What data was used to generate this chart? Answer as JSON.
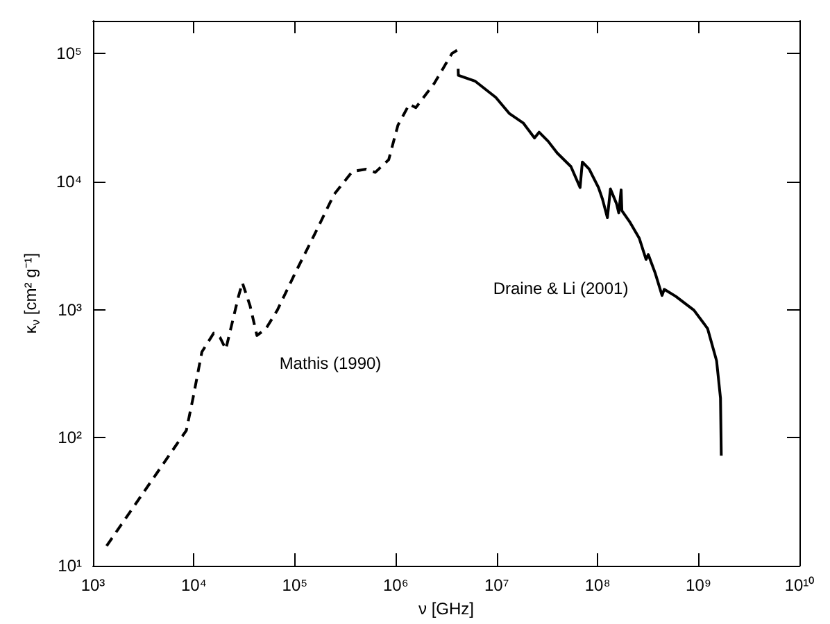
{
  "chart_data": {
    "type": "line",
    "xlabel": "ν [GHz]",
    "ylabel": "κ$_{ν}$ [cm² g⁻¹]",
    "log": "xy",
    "grid": false,
    "marker": "none",
    "xlim": [
      1000,
      10000000000
    ],
    "ylim": [
      10,
      180000
    ],
    "xticks": [
      {
        "value": 1000,
        "label": "10³"
      },
      {
        "value": 10000,
        "label": "10⁴"
      },
      {
        "value": 100000,
        "label": "10⁵"
      },
      {
        "value": 1000000,
        "label": "10⁶"
      },
      {
        "value": 10000000,
        "label": "10⁷"
      },
      {
        "value": 100000000,
        "label": "10⁸"
      },
      {
        "value": 1000000000,
        "label": "10⁹"
      },
      {
        "value": 10000000000,
        "label": "10¹⁰"
      }
    ],
    "yticks": [
      {
        "value": 10,
        "label": "10¹"
      },
      {
        "value": 100,
        "label": "10²"
      },
      {
        "value": 1000,
        "label": "10³"
      },
      {
        "value": 10000,
        "label": "10⁴"
      },
      {
        "value": 100000,
        "label": "10⁵"
      }
    ],
    "series": [
      {
        "color": "#000000",
        "line_style": "dashed",
        "x": [
          1365,
          8410,
          9800,
          12000,
          15700,
          18200,
          20700,
          27700,
          30200,
          36000,
          42100,
          51800,
          67100,
          100700,
          162000,
          245000,
          372000,
          508000,
          626000,
          851000,
          1050000,
          1360000,
          1580000,
          2400000,
          3600000,
          4050000
        ],
        "values": [
          14.3,
          114,
          204,
          468,
          655,
          603,
          490,
          1274,
          1622,
          1072,
          628,
          711,
          991,
          1928,
          4074,
          7943,
          12000,
          12500,
          11800,
          14800,
          27500,
          40100,
          37800,
          58200,
          100000,
          106000
        ]
      },
      {
        "color": "#000000",
        "line_style": "solid",
        "x": [
          4150000,
          4170000,
          6140000,
          9800000,
          13400000,
          18300000,
          23700000,
          26300000,
          32400000,
          39800000,
          54400000,
          67000000,
          70600000,
          82500000,
          102000000,
          112000000,
          125000000,
          134000000,
          154000000,
          162000000,
          171000000,
          174000000,
          210000000,
          259000000,
          302000000,
          318000000,
          372000000,
          435000000,
          457000000,
          594000000,
          900000000,
          1230000000,
          1510000000,
          1650000000,
          1680000000
        ],
        "values": [
          76000,
          67600,
          60700,
          45400,
          33900,
          28700,
          21900,
          24300,
          20600,
          16700,
          13100,
          8980,
          14200,
          12500,
          8980,
          7250,
          5220,
          8750,
          6710,
          5690,
          8610,
          5930,
          4790,
          3600,
          2470,
          2690,
          1930,
          1290,
          1440,
          1270,
          990,
          711,
          398,
          204,
          72.4
        ]
      }
    ],
    "annotations": [
      "Mathis (1990)",
      "Draine & Li (2001)"
    ]
  }
}
